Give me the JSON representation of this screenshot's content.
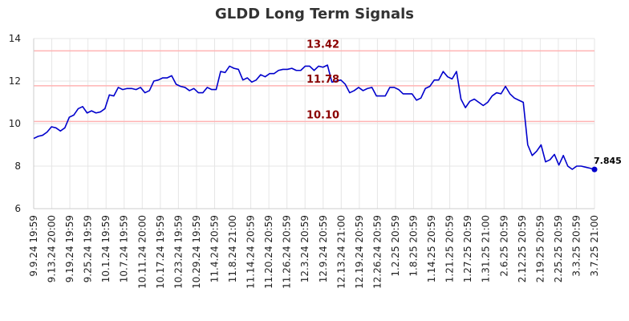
{
  "chart_data": {
    "type": "line",
    "title": "GLDD Long Term Signals",
    "ylim": [
      6,
      14
    ],
    "yticks": [
      "6",
      "8",
      "10",
      "12",
      "14"
    ],
    "xtick_labels": [
      "9.9.24 19:59",
      "9.13.24 20:00",
      "9.19.24 19:59",
      "9.25.24 19:59",
      "10.1.24 19:59",
      "10.7.24 19:59",
      "10.11.24 20:00",
      "10.17.24 19:59",
      "10.23.24 19:59",
      "10.29.24 19:59",
      "11.4.24 20:59",
      "11.8.24 21:00",
      "11.14.24 20:59",
      "11.20.24 20:59",
      "11.26.24 20:59",
      "12.3.24 20:59",
      "12.9.24 20:59",
      "12.13.24 21:00",
      "12.19.24 20:59",
      "12.26.24 20:59",
      "1.2.25 20:59",
      "1.8.25 20:59",
      "1.14.25 20:59",
      "1.21.25 20:59",
      "1.27.25 20:59",
      "1.31.25 21:00",
      "2.6.25 20:59",
      "2.12.25 20:59",
      "2.19.25 20:59",
      "2.25.25 20:59",
      "3.3.25 20:59",
      "3.7.25 21:00"
    ],
    "grid": true,
    "line_color": "#0000cc",
    "reference_color": "#ffb3b3",
    "reference_lines": [
      {
        "value": 13.42,
        "label": "13.42"
      },
      {
        "value": 11.78,
        "label": "11.78"
      },
      {
        "value": 10.1,
        "label": "10.10"
      }
    ],
    "last_value_label": "7.845",
    "series": [
      {
        "values": [
          9.3,
          9.4,
          9.45,
          9.6,
          9.85,
          9.8,
          9.65,
          9.8,
          10.3,
          10.4,
          10.7,
          10.8,
          10.5,
          10.6,
          10.5,
          10.55,
          10.7,
          11.35,
          11.3,
          11.7,
          11.6,
          11.65,
          11.65,
          11.6,
          11.7,
          11.45,
          11.55,
          12.0,
          12.05,
          12.15,
          12.15,
          12.25,
          11.85,
          11.75,
          11.7,
          11.55,
          11.65,
          11.45,
          11.45,
          11.7,
          11.6,
          11.6,
          12.45,
          12.4,
          12.7,
          12.6,
          12.55,
          12.05,
          12.15,
          11.95,
          12.05,
          12.3,
          12.2,
          12.35,
          12.35,
          12.5,
          12.55,
          12.55,
          12.6,
          12.5,
          12.5,
          12.7,
          12.7,
          12.5,
          12.7,
          12.65,
          12.75,
          11.95,
          12.0,
          12.05,
          11.85,
          11.45,
          11.55,
          11.7,
          11.55,
          11.65,
          11.7,
          11.3,
          11.3,
          11.3,
          11.7,
          11.7,
          11.6,
          11.4,
          11.4,
          11.4,
          11.1,
          11.2,
          11.65,
          11.75,
          12.05,
          12.05,
          12.45,
          12.2,
          12.1,
          12.45,
          11.15,
          10.75,
          11.05,
          11.15,
          11.0,
          10.85,
          11.0,
          11.3,
          11.45,
          11.4,
          11.75,
          11.4,
          11.2,
          11.1,
          11.0,
          9.0,
          8.5,
          8.7,
          9.0,
          8.2,
          8.3,
          8.55,
          8.05,
          8.5,
          8.0,
          7.85,
          8.0,
          8.0,
          7.95,
          7.9,
          7.845
        ]
      }
    ]
  }
}
